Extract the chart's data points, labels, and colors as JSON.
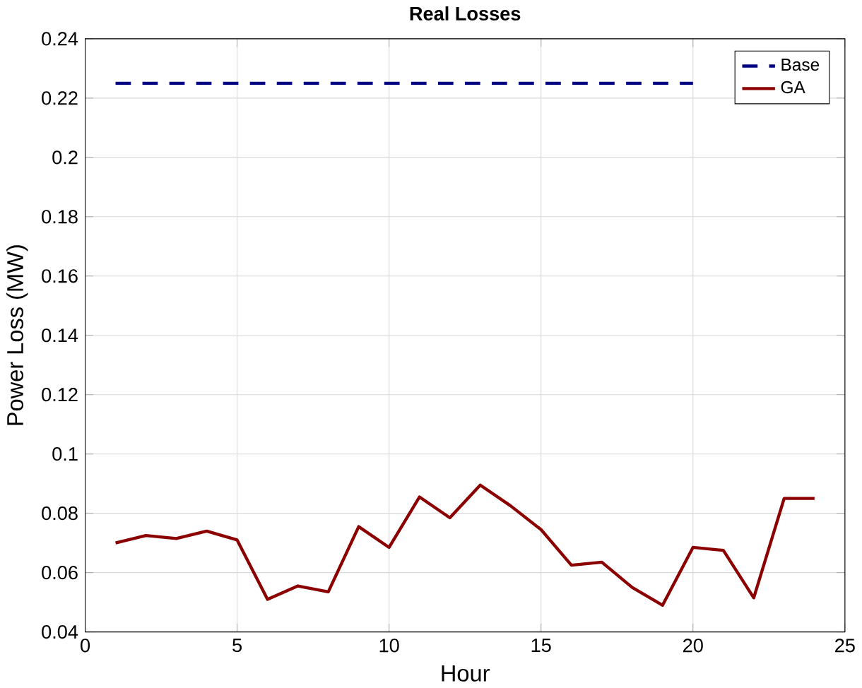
{
  "chart_data": {
    "type": "line",
    "title": "Real Losses",
    "xlabel": "Hour",
    "ylabel": "Power Loss (MW)",
    "x": [
      1,
      2,
      3,
      4,
      5,
      6,
      7,
      8,
      9,
      10,
      11,
      12,
      13,
      14,
      15,
      16,
      17,
      18,
      19,
      20,
      21,
      22,
      23,
      24
    ],
    "series": [
      {
        "name": "Base",
        "color": "#000080",
        "line_style": "dashed",
        "values": [
          0.225,
          0.225,
          0.225,
          0.225,
          0.225,
          0.225,
          0.225,
          0.225,
          0.225,
          0.225,
          0.225,
          0.225,
          0.225,
          0.225,
          0.225,
          0.225,
          0.225,
          0.225,
          0.225,
          0.225,
          null,
          null,
          null,
          null
        ]
      },
      {
        "name": "GA",
        "color": "#8b0000",
        "line_style": "solid",
        "values": [
          0.07,
          0.0725,
          0.0715,
          0.074,
          0.071,
          0.051,
          0.0555,
          0.0535,
          0.0755,
          0.0685,
          0.0855,
          0.0785,
          0.0895,
          0.0825,
          0.0745,
          0.0625,
          0.0635,
          0.055,
          0.049,
          0.0685,
          0.0675,
          0.0515,
          0.085,
          0.085
        ]
      }
    ],
    "xlim": [
      0,
      25
    ],
    "xticks": [
      0,
      5,
      10,
      15,
      20,
      25
    ],
    "ylim": [
      0.04,
      0.24
    ],
    "yticks": [
      0.04,
      0.06,
      0.08,
      0.1,
      0.12,
      0.14,
      0.16,
      0.18,
      0.2,
      0.22,
      0.24
    ],
    "grid": true,
    "legend": "top right"
  }
}
